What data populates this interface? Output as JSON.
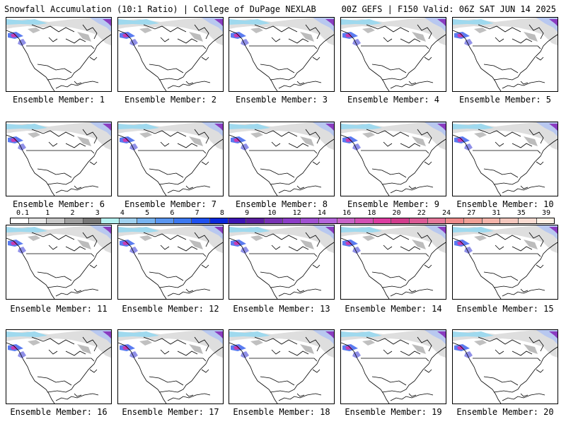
{
  "header": {
    "left": "Snowfall Accumulation (10:1 Ratio) | College of DuPage NEXLAB",
    "right": "00Z GEFS | F150 Valid: 06Z SAT JUN 14 2025"
  },
  "panels": [
    {
      "label": "Ensemble Member: 1"
    },
    {
      "label": "Ensemble Member: 2"
    },
    {
      "label": "Ensemble Member: 3"
    },
    {
      "label": "Ensemble Member: 4"
    },
    {
      "label": "Ensemble Member: 5"
    },
    {
      "label": "Ensemble Member: 6"
    },
    {
      "label": "Ensemble Member: 7"
    },
    {
      "label": "Ensemble Member: 8"
    },
    {
      "label": "Ensemble Member: 9"
    },
    {
      "label": "Ensemble Member: 10"
    },
    {
      "label": "Ensemble Member: 11"
    },
    {
      "label": "Ensemble Member: 12"
    },
    {
      "label": "Ensemble Member: 13"
    },
    {
      "label": "Ensemble Member: 14"
    },
    {
      "label": "Ensemble Member: 15"
    },
    {
      "label": "Ensemble Member: 16"
    },
    {
      "label": "Ensemble Member: 17"
    },
    {
      "label": "Ensemble Member: 18"
    },
    {
      "label": "Ensemble Member: 19"
    },
    {
      "label": "Ensemble Member: 20"
    }
  ],
  "colorbar": {
    "ticks": [
      "0.1",
      "1",
      "2",
      "3",
      "4",
      "5",
      "6",
      "7",
      "8",
      "9",
      "10",
      "12",
      "14",
      "16",
      "18",
      "20",
      "22",
      "24",
      "27",
      "31",
      "35",
      "39"
    ],
    "colors": [
      "#ffffff",
      "#e6e6e6",
      "#c8c8c8",
      "#a0a0a0",
      "#787878",
      "#b4f0f0",
      "#a0d2f0",
      "#78b4f0",
      "#5a96f0",
      "#3c78f0",
      "#1e50f0",
      "#0a28dc",
      "#3c14b4",
      "#5a1ea0",
      "#7832b4",
      "#8c3cc8",
      "#a050d2",
      "#b464dc",
      "#c864c8",
      "#d250b4",
      "#dc3ca0",
      "#d23c8c",
      "#dc5a96",
      "#e6789b",
      "#f08c8c",
      "#f0a096",
      "#f5b4aa",
      "#f5c8be",
      "#fadcd2",
      "#fff0e6"
    ]
  }
}
